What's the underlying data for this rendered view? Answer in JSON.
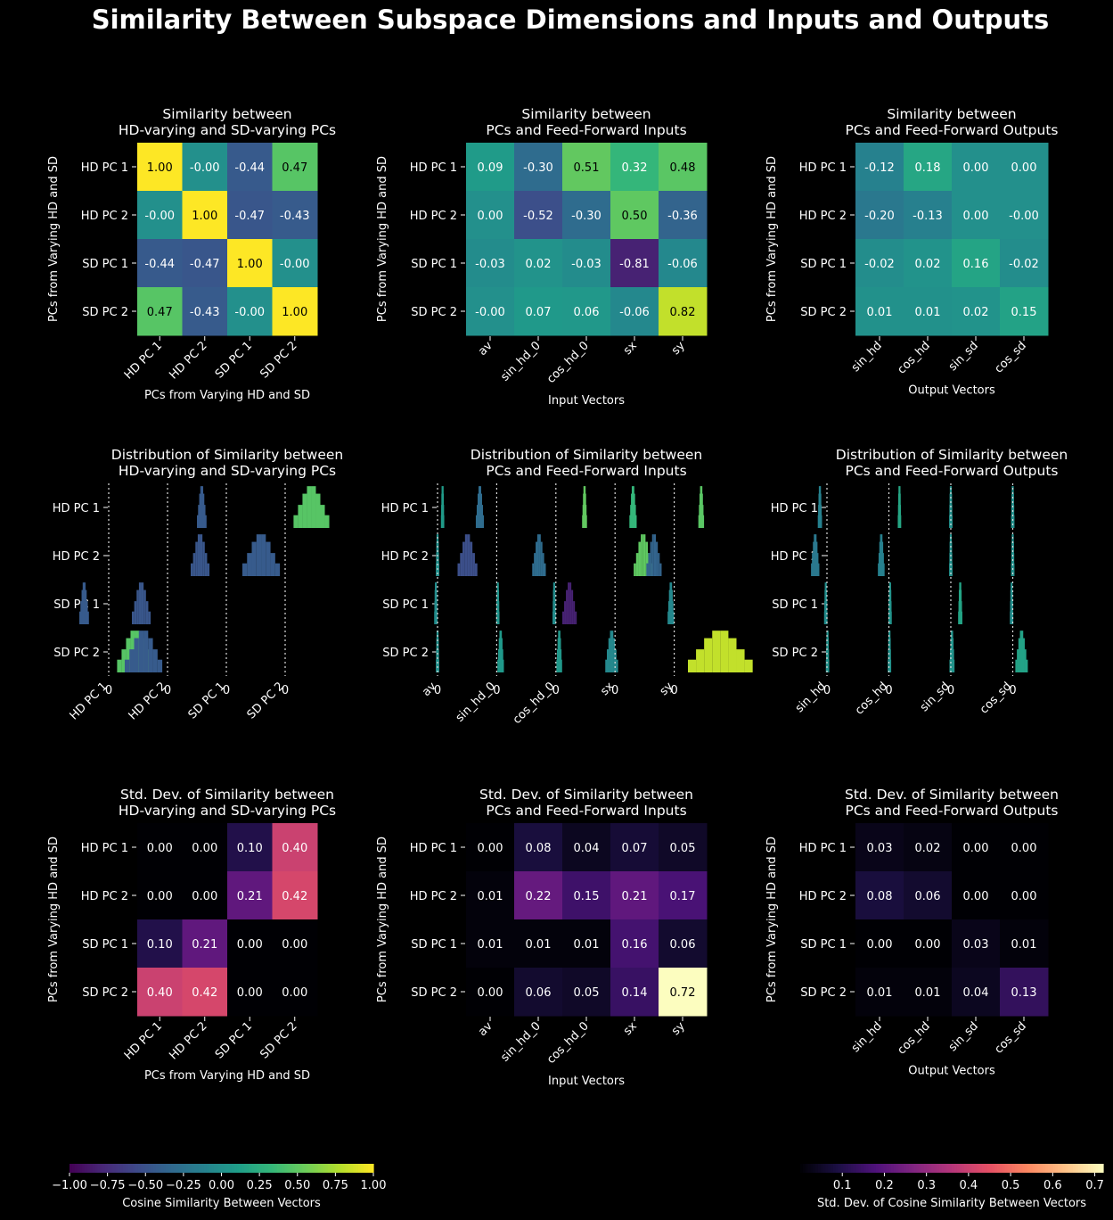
{
  "figure": {
    "title": "Similarity Between Subspace Dimensions and Inputs and Outputs",
    "background": "#000000",
    "text_color": "#ffffff"
  },
  "colorbars": {
    "similarity": {
      "label": "Cosine Similarity Between Vectors",
      "colormap": "viridis",
      "range": [
        -1.0,
        1.0
      ],
      "ticks": [
        "−1.00",
        "−0.75",
        "−0.50",
        "−0.25",
        "0.00",
        "0.25",
        "0.50",
        "0.75",
        "1.00"
      ]
    },
    "stddev": {
      "label": "Std. Dev. of Cosine Similarity Between Vectors",
      "colormap": "magma",
      "range": [
        0.0,
        0.72
      ],
      "ticks": [
        "0.1",
        "0.2",
        "0.3",
        "0.4",
        "0.5",
        "0.6",
        "0.7"
      ]
    }
  },
  "chart_data": [
    {
      "type": "heatmap",
      "title": "Similarity between\nHD-varying and SD-varying PCs",
      "xlabel": "PCs from Varying HD and SD",
      "ylabel": "PCs from Varying HD and SD",
      "rows": [
        "HD PC 1",
        "HD PC 2",
        "SD PC 1",
        "SD PC 2"
      ],
      "cols": [
        "HD PC 1",
        "HD PC 2",
        "SD PC 1",
        "SD PC 2"
      ],
      "colormap": "viridis",
      "vmin": -1.0,
      "vmax": 1.0,
      "values": [
        [
          1.0,
          -0.0,
          -0.44,
          0.47
        ],
        [
          -0.0,
          1.0,
          -0.47,
          -0.43
        ],
        [
          -0.44,
          -0.47,
          1.0,
          -0.0
        ],
        [
          0.47,
          -0.43,
          -0.0,
          1.0
        ]
      ],
      "labels": [
        [
          "1.00",
          "-0.00",
          "-0.44",
          "0.47"
        ],
        [
          "-0.00",
          "1.00",
          "-0.47",
          "-0.43"
        ],
        [
          "-0.44",
          "-0.47",
          "1.00",
          "-0.00"
        ],
        [
          "0.47",
          "-0.43",
          "-0.00",
          "1.00"
        ]
      ]
    },
    {
      "type": "heatmap",
      "title": "Similarity between\nPCs and Feed-Forward Inputs",
      "xlabel": "Input Vectors",
      "ylabel": "PCs from Varying HD and SD",
      "rows": [
        "HD PC 1",
        "HD PC 2",
        "SD PC 1",
        "SD PC 2"
      ],
      "cols": [
        "av",
        "sin_hd_0",
        "cos_hd_0",
        "sx",
        "sy"
      ],
      "colormap": "viridis",
      "vmin": -1.0,
      "vmax": 1.0,
      "values": [
        [
          0.09,
          -0.3,
          0.51,
          0.32,
          0.48
        ],
        [
          0.0,
          -0.52,
          -0.3,
          0.5,
          -0.36
        ],
        [
          -0.03,
          0.02,
          -0.03,
          -0.81,
          -0.06
        ],
        [
          -0.0,
          0.07,
          0.06,
          -0.06,
          0.82
        ]
      ],
      "labels": [
        [
          "0.09",
          "-0.30",
          "0.51",
          "0.32",
          "0.48"
        ],
        [
          "0.00",
          "-0.52",
          "-0.30",
          "0.50",
          "-0.36"
        ],
        [
          "-0.03",
          "0.02",
          "-0.03",
          "-0.81",
          "-0.06"
        ],
        [
          "-0.00",
          "0.07",
          "0.06",
          "-0.06",
          "0.82"
        ]
      ]
    },
    {
      "type": "heatmap",
      "title": "Similarity between\nPCs and Feed-Forward Outputs",
      "xlabel": "Output Vectors",
      "ylabel": "PCs from Varying HD and SD",
      "rows": [
        "HD PC 1",
        "HD PC 2",
        "SD PC 1",
        "SD PC 2"
      ],
      "cols": [
        "sin_hd",
        "cos_hd",
        "sin_sd",
        "cos_sd"
      ],
      "colormap": "viridis",
      "vmin": -1.0,
      "vmax": 1.0,
      "values": [
        [
          -0.12,
          0.18,
          0.0,
          0.0
        ],
        [
          -0.2,
          -0.13,
          0.0,
          -0.0
        ],
        [
          -0.02,
          0.02,
          0.16,
          -0.02
        ],
        [
          0.01,
          0.01,
          0.02,
          0.15
        ]
      ],
      "labels": [
        [
          "-0.12",
          "0.18",
          "0.00",
          "0.00"
        ],
        [
          "-0.20",
          "-0.13",
          "0.00",
          "-0.00"
        ],
        [
          "-0.02",
          "0.02",
          "0.16",
          "-0.02"
        ],
        [
          "0.01",
          "0.01",
          "0.02",
          "0.15"
        ]
      ]
    },
    {
      "type": "histogram-grid",
      "title": "Distribution of Similarity between\nHD-varying and SD-varying PCs",
      "rows": [
        "HD PC 1",
        "HD PC 2",
        "SD PC 1",
        "SD PC 2"
      ],
      "cols": [
        "HD PC 1",
        "HD PC 2",
        "SD PC 1",
        "SD PC 2"
      ],
      "zero_tick": "0",
      "xlim": [
        -1.0,
        1.0
      ],
      "colormap": "viridis",
      "centers": [
        [
          null,
          null,
          -0.44,
          0.47
        ],
        [
          null,
          null,
          -0.47,
          -0.43
        ],
        [
          -0.44,
          -0.47,
          null,
          null
        ],
        [
          0.47,
          -0.43,
          null,
          null
        ]
      ],
      "spreads": [
        [
          0.0,
          0.0,
          0.1,
          0.4
        ],
        [
          0.0,
          0.0,
          0.21,
          0.42
        ],
        [
          0.1,
          0.21,
          0.0,
          0.0
        ],
        [
          0.4,
          0.42,
          0.0,
          0.0
        ]
      ]
    },
    {
      "type": "histogram-grid",
      "title": "Distribution of Similarity between\nPCs and Feed-Forward Inputs",
      "rows": [
        "HD PC 1",
        "HD PC 2",
        "SD PC 1",
        "SD PC 2"
      ],
      "cols": [
        "av",
        "sin_hd_0",
        "cos_hd_0",
        "sx",
        "sy"
      ],
      "zero_tick": "0",
      "xlim": [
        -1.0,
        1.0
      ],
      "colormap": "viridis",
      "centers": [
        [
          0.09,
          -0.3,
          0.51,
          0.32,
          0.48
        ],
        [
          0.0,
          -0.52,
          -0.3,
          0.5,
          -0.36
        ],
        [
          -0.03,
          0.02,
          -0.03,
          -0.81,
          -0.06
        ],
        [
          -0.0,
          0.07,
          0.06,
          -0.06,
          0.82
        ]
      ],
      "spreads": [
        [
          0.0,
          0.08,
          0.04,
          0.07,
          0.05
        ],
        [
          0.01,
          0.22,
          0.15,
          0.21,
          0.17
        ],
        [
          0.01,
          0.01,
          0.01,
          0.16,
          0.06
        ],
        [
          0.0,
          0.06,
          0.05,
          0.14,
          0.72
        ]
      ]
    },
    {
      "type": "histogram-grid",
      "title": "Distribution of Similarity between\nPCs and Feed-Forward Outputs",
      "rows": [
        "HD PC 1",
        "HD PC 2",
        "SD PC 1",
        "SD PC 2"
      ],
      "cols": [
        "sin_hd",
        "cos_hd",
        "sin_sd",
        "cos_sd"
      ],
      "zero_tick": "0",
      "xlim": [
        -1.0,
        1.0
      ],
      "colormap": "viridis",
      "centers": [
        [
          -0.12,
          0.18,
          0.0,
          0.0
        ],
        [
          -0.2,
          -0.13,
          0.0,
          -0.0
        ],
        [
          -0.02,
          0.02,
          0.16,
          -0.02
        ],
        [
          0.01,
          0.01,
          0.02,
          0.15
        ]
      ],
      "spreads": [
        [
          0.03,
          0.02,
          0.0,
          0.0
        ],
        [
          0.08,
          0.06,
          0.0,
          0.0
        ],
        [
          0.0,
          0.0,
          0.03,
          0.01
        ],
        [
          0.01,
          0.01,
          0.04,
          0.13
        ]
      ]
    },
    {
      "type": "heatmap",
      "title": "Std. Dev. of Similarity between\nHD-varying and SD-varying PCs",
      "xlabel": "PCs from Varying HD and SD",
      "ylabel": "PCs from Varying HD and SD",
      "rows": [
        "HD PC 1",
        "HD PC 2",
        "SD PC 1",
        "SD PC 2"
      ],
      "cols": [
        "HD PC 1",
        "HD PC 2",
        "SD PC 1",
        "SD PC 2"
      ],
      "colormap": "magma",
      "vmin": 0.0,
      "vmax": 0.72,
      "values": [
        [
          0.0,
          0.0,
          0.1,
          0.4
        ],
        [
          0.0,
          0.0,
          0.21,
          0.42
        ],
        [
          0.1,
          0.21,
          0.0,
          0.0
        ],
        [
          0.4,
          0.42,
          0.0,
          0.0
        ]
      ],
      "labels": [
        [
          "0.00",
          "0.00",
          "0.10",
          "0.40"
        ],
        [
          "0.00",
          "0.00",
          "0.21",
          "0.42"
        ],
        [
          "0.10",
          "0.21",
          "0.00",
          "0.00"
        ],
        [
          "0.40",
          "0.42",
          "0.00",
          "0.00"
        ]
      ]
    },
    {
      "type": "heatmap",
      "title": "Std. Dev. of Similarity between\nPCs and Feed-Forward Inputs",
      "xlabel": "Input Vectors",
      "ylabel": "PCs from Varying HD and SD",
      "rows": [
        "HD PC 1",
        "HD PC 2",
        "SD PC 1",
        "SD PC 2"
      ],
      "cols": [
        "av",
        "sin_hd_0",
        "cos_hd_0",
        "sx",
        "sy"
      ],
      "colormap": "magma",
      "vmin": 0.0,
      "vmax": 0.72,
      "values": [
        [
          0.0,
          0.08,
          0.04,
          0.07,
          0.05
        ],
        [
          0.01,
          0.22,
          0.15,
          0.21,
          0.17
        ],
        [
          0.01,
          0.01,
          0.01,
          0.16,
          0.06
        ],
        [
          0.0,
          0.06,
          0.05,
          0.14,
          0.72
        ]
      ],
      "labels": [
        [
          "0.00",
          "0.08",
          "0.04",
          "0.07",
          "0.05"
        ],
        [
          "0.01",
          "0.22",
          "0.15",
          "0.21",
          "0.17"
        ],
        [
          "0.01",
          "0.01",
          "0.01",
          "0.16",
          "0.06"
        ],
        [
          "0.00",
          "0.06",
          "0.05",
          "0.14",
          "0.72"
        ]
      ]
    },
    {
      "type": "heatmap",
      "title": "Std. Dev. of Similarity between\nPCs and Feed-Forward Outputs",
      "xlabel": "Output Vectors",
      "ylabel": "PCs from Varying HD and SD",
      "rows": [
        "HD PC 1",
        "HD PC 2",
        "SD PC 1",
        "SD PC 2"
      ],
      "cols": [
        "sin_hd",
        "cos_hd",
        "sin_sd",
        "cos_sd"
      ],
      "colormap": "magma",
      "vmin": 0.0,
      "vmax": 0.72,
      "values": [
        [
          0.03,
          0.02,
          0.0,
          0.0
        ],
        [
          0.08,
          0.06,
          0.0,
          0.0
        ],
        [
          0.0,
          0.0,
          0.03,
          0.01
        ],
        [
          0.01,
          0.01,
          0.04,
          0.13
        ]
      ],
      "labels": [
        [
          "0.03",
          "0.02",
          "0.00",
          "0.00"
        ],
        [
          "0.08",
          "0.06",
          "0.00",
          "0.00"
        ],
        [
          "0.00",
          "0.00",
          "0.03",
          "0.01"
        ],
        [
          "0.01",
          "0.01",
          "0.04",
          "0.13"
        ]
      ]
    }
  ]
}
